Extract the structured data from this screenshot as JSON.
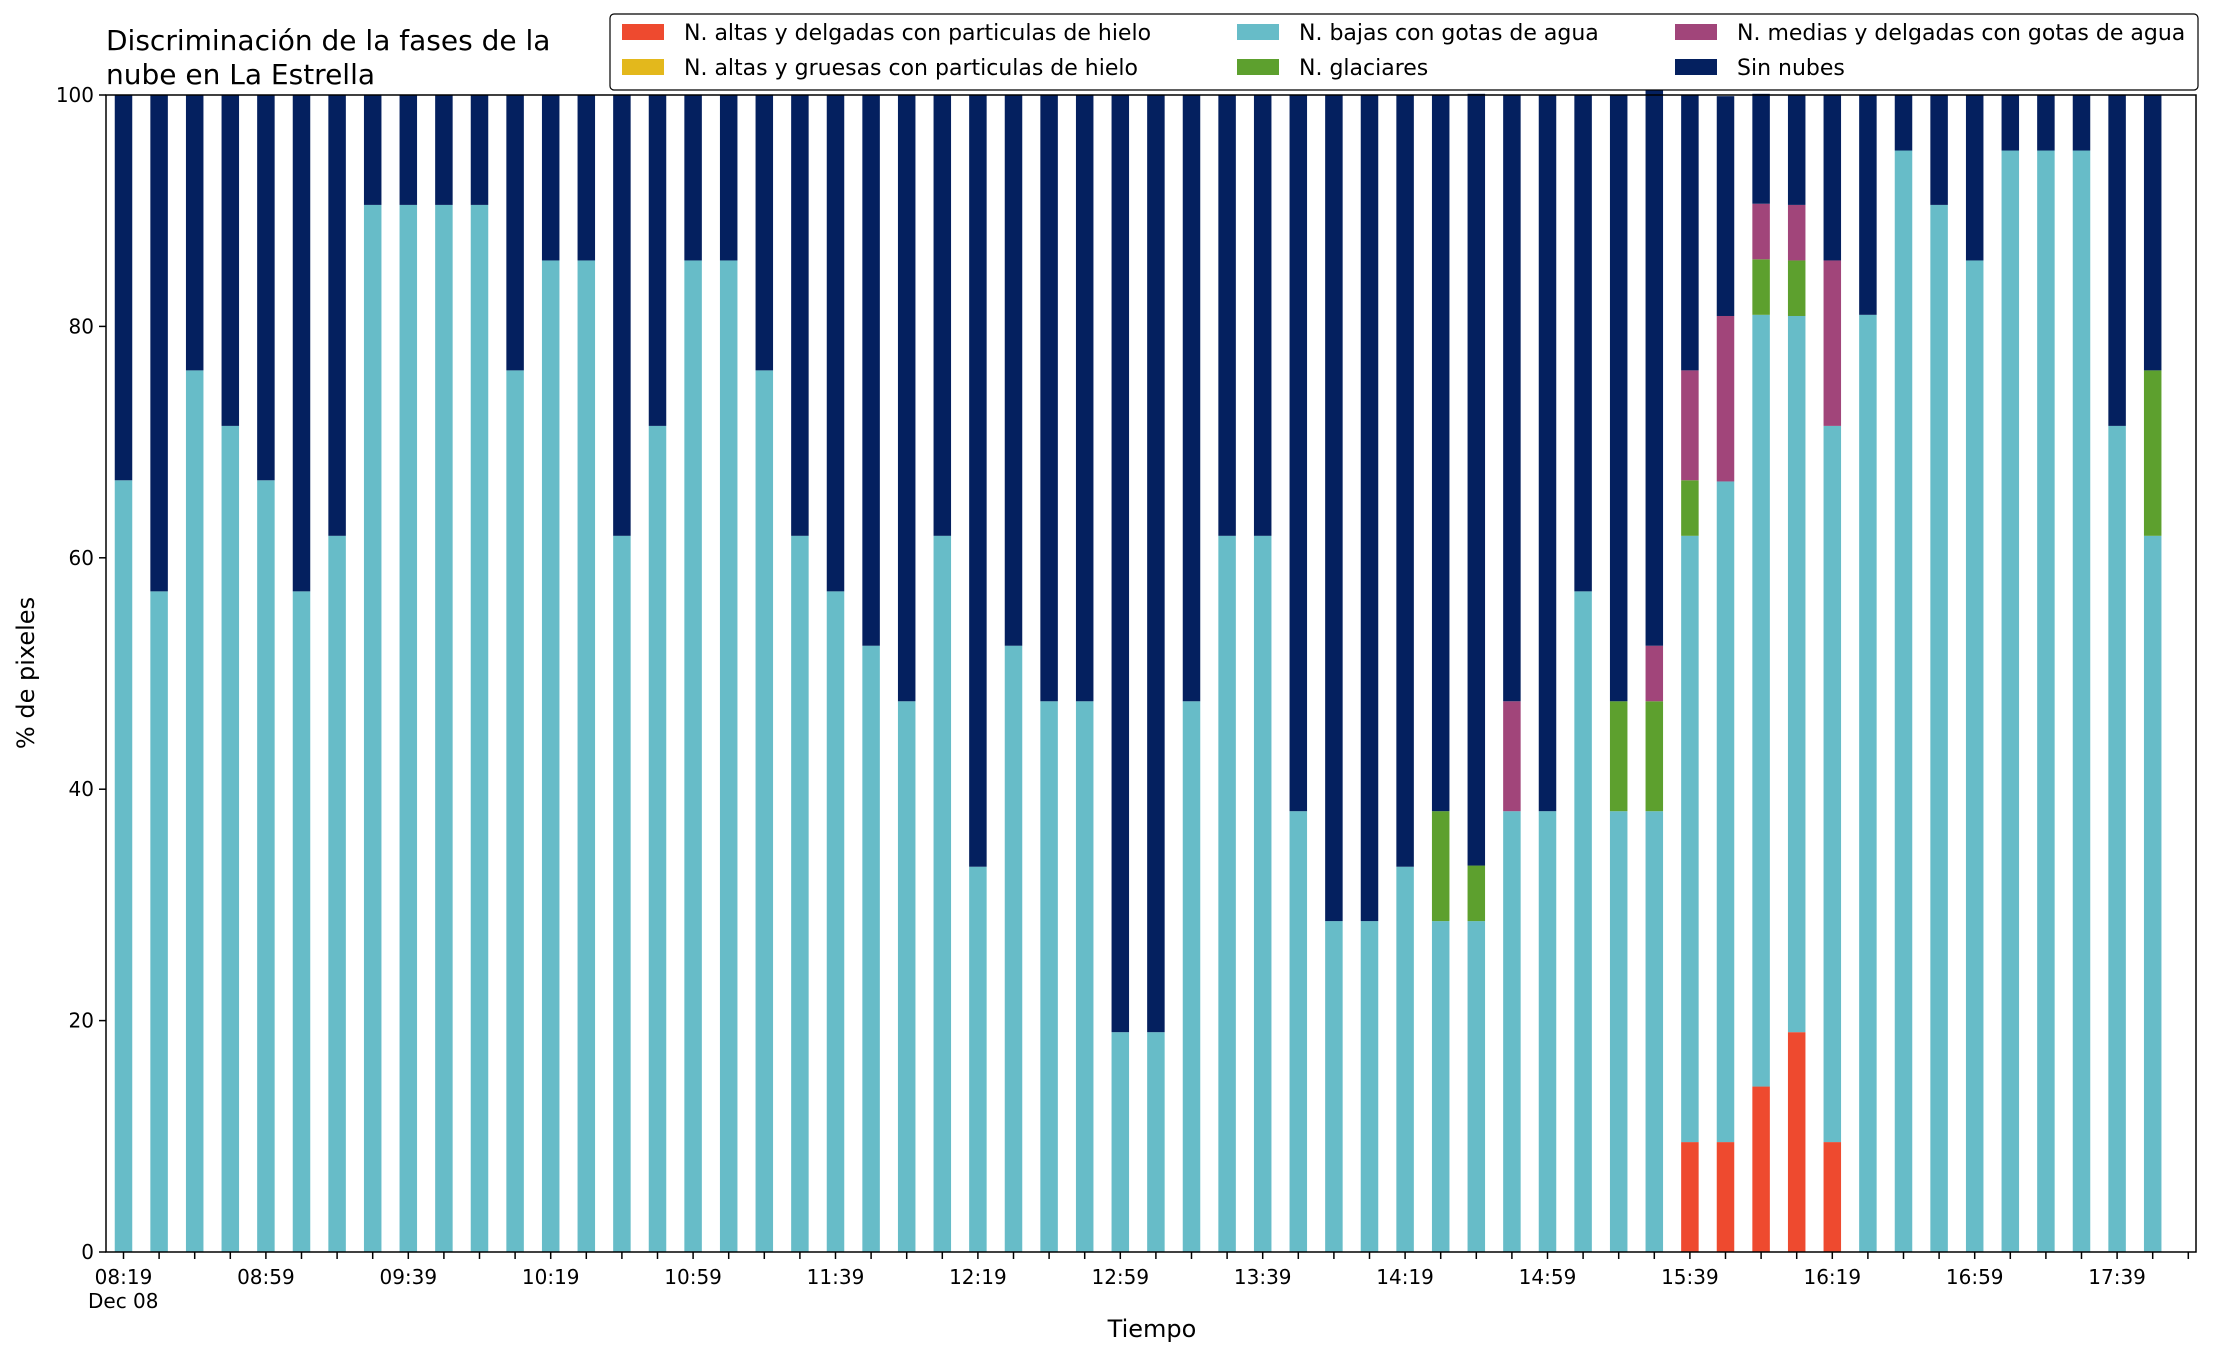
{
  "chart_data": {
    "type": "bar",
    "stacked": true,
    "title": "Discriminación de la fases de la\nnube en La Estrella",
    "xlabel": "Tiempo",
    "ylabel": "% de pixeles",
    "ylim": [
      0,
      100
    ],
    "yticks": [
      0,
      20,
      40,
      60,
      80,
      100
    ],
    "grid": false,
    "legend_position": "top-right",
    "x_date_label": "Dec 08",
    "x_tick_labels": [
      "08:19",
      "08:59",
      "09:39",
      "10:19",
      "10:59",
      "11:39",
      "12:19",
      "12:59",
      "13:39",
      "14:19",
      "14:59",
      "15:39",
      "16:19",
      "16:59",
      "17:39"
    ],
    "x": [
      "08:19",
      "08:29",
      "08:39",
      "08:49",
      "08:59",
      "09:09",
      "09:19",
      "09:29",
      "09:39",
      "09:49",
      "09:59",
      "10:09",
      "10:19",
      "10:29",
      "10:39",
      "10:49",
      "10:59",
      "11:09",
      "11:19",
      "11:29",
      "11:39",
      "11:49",
      "11:59",
      "12:09",
      "12:19",
      "12:29",
      "12:39",
      "12:49",
      "12:59",
      "13:09",
      "13:19",
      "13:29",
      "13:39",
      "13:49",
      "13:59",
      "14:09",
      "14:19",
      "14:29",
      "14:39",
      "14:49",
      "14:59",
      "15:09",
      "15:19",
      "15:29",
      "15:39",
      "15:49",
      "15:59",
      "16:09",
      "16:19",
      "16:29",
      "16:39",
      "16:49",
      "16:59",
      "17:09",
      "17:19",
      "17:29",
      "17:39",
      "17:49"
    ],
    "series": [
      {
        "name": "N. altas y delgadas con particulas de hielo",
        "color": "#ee4a2f",
        "values": [
          0,
          0,
          0,
          0,
          0,
          0,
          0,
          0,
          0,
          0,
          0,
          0,
          0,
          0,
          0,
          0,
          0,
          0,
          0,
          0,
          0,
          0,
          0,
          0,
          0,
          0,
          0,
          0,
          0,
          0,
          0,
          0,
          0,
          0,
          0,
          0,
          0,
          0,
          0,
          0,
          0,
          0,
          0,
          0,
          9.5,
          9.5,
          14.3,
          19.0,
          9.5,
          0,
          0,
          0,
          0,
          0,
          0,
          0,
          0,
          0
        ]
      },
      {
        "name": "N. altas y gruesas con particulas de hielo",
        "color": "#e3b81c",
        "values": [
          0,
          0,
          0,
          0,
          0,
          0,
          0,
          0,
          0,
          0,
          0,
          0,
          0,
          0,
          0,
          0,
          0,
          0,
          0,
          0,
          0,
          0,
          0,
          0,
          0,
          0,
          0,
          0,
          0,
          0,
          0,
          0,
          0,
          0,
          0,
          0,
          0,
          0,
          0,
          0,
          0,
          0,
          0,
          0,
          0,
          0,
          0,
          0,
          0,
          0,
          0,
          0,
          0,
          0,
          0,
          0,
          0,
          0
        ]
      },
      {
        "name": "N. bajas con gotas de agua",
        "color": "#67bcc8",
        "values": [
          66.7,
          57.1,
          76.2,
          71.4,
          66.7,
          57.1,
          61.9,
          90.5,
          90.5,
          90.5,
          90.5,
          76.2,
          85.7,
          85.7,
          61.9,
          71.4,
          85.7,
          85.7,
          76.2,
          61.9,
          57.1,
          52.4,
          47.6,
          61.9,
          33.3,
          52.4,
          47.6,
          47.6,
          19.0,
          19.0,
          47.6,
          61.9,
          61.9,
          38.1,
          28.6,
          28.6,
          33.3,
          28.6,
          28.6,
          38.1,
          38.1,
          57.1,
          38.1,
          38.1,
          52.4,
          57.1,
          66.7,
          61.9,
          61.9,
          81.0,
          95.2,
          90.5,
          85.7,
          95.2,
          95.2,
          95.2,
          71.4,
          61.9
        ]
      },
      {
        "name": "N. glaciares",
        "color": "#5da02e",
        "values": [
          0,
          0,
          0,
          0,
          0,
          0,
          0,
          0,
          0,
          0,
          0,
          0,
          0,
          0,
          0,
          0,
          0,
          0,
          0,
          0,
          0,
          0,
          0,
          0,
          0,
          0,
          0,
          0,
          0,
          0,
          0,
          0,
          0,
          0,
          0,
          0,
          0,
          9.5,
          4.8,
          0,
          0,
          0,
          9.5,
          9.5,
          4.8,
          0,
          4.8,
          4.8,
          0,
          0,
          0,
          0,
          0,
          0,
          0,
          0,
          0,
          14.3
        ]
      },
      {
        "name": "N. medias y delgadas con gotas de agua",
        "color": "#a1457a",
        "values": [
          0,
          0,
          0,
          0,
          0,
          0,
          0,
          0,
          0,
          0,
          0,
          0,
          0,
          0,
          0,
          0,
          0,
          0,
          0,
          0,
          0,
          0,
          0,
          0,
          0,
          0,
          0,
          0,
          0,
          0,
          0,
          0,
          0,
          0,
          0,
          0,
          0,
          0,
          0,
          9.5,
          0,
          0,
          0,
          4.8,
          9.5,
          14.3,
          4.8,
          4.8,
          14.3,
          0,
          0,
          0,
          0,
          0,
          0,
          0,
          0,
          0
        ]
      },
      {
        "name": "Sin nubes",
        "color": "#04205f",
        "values": [
          33.3,
          42.9,
          23.8,
          28.6,
          33.3,
          42.9,
          38.1,
          9.5,
          9.5,
          9.5,
          9.5,
          23.8,
          14.3,
          14.3,
          38.1,
          28.6,
          14.3,
          14.3,
          23.8,
          38.1,
          42.9,
          47.6,
          52.4,
          38.1,
          66.7,
          47.6,
          52.4,
          52.4,
          81.0,
          81.0,
          52.4,
          38.1,
          38.1,
          61.9,
          71.4,
          71.4,
          66.7,
          61.9,
          66.7,
          52.4,
          61.9,
          42.9,
          52.4,
          52.4,
          23.8,
          19.0,
          9.5,
          9.5,
          14.3,
          19.0,
          4.8,
          9.5,
          14.3,
          4.8,
          4.8,
          4.8,
          28.6,
          23.8
        ]
      }
    ]
  }
}
